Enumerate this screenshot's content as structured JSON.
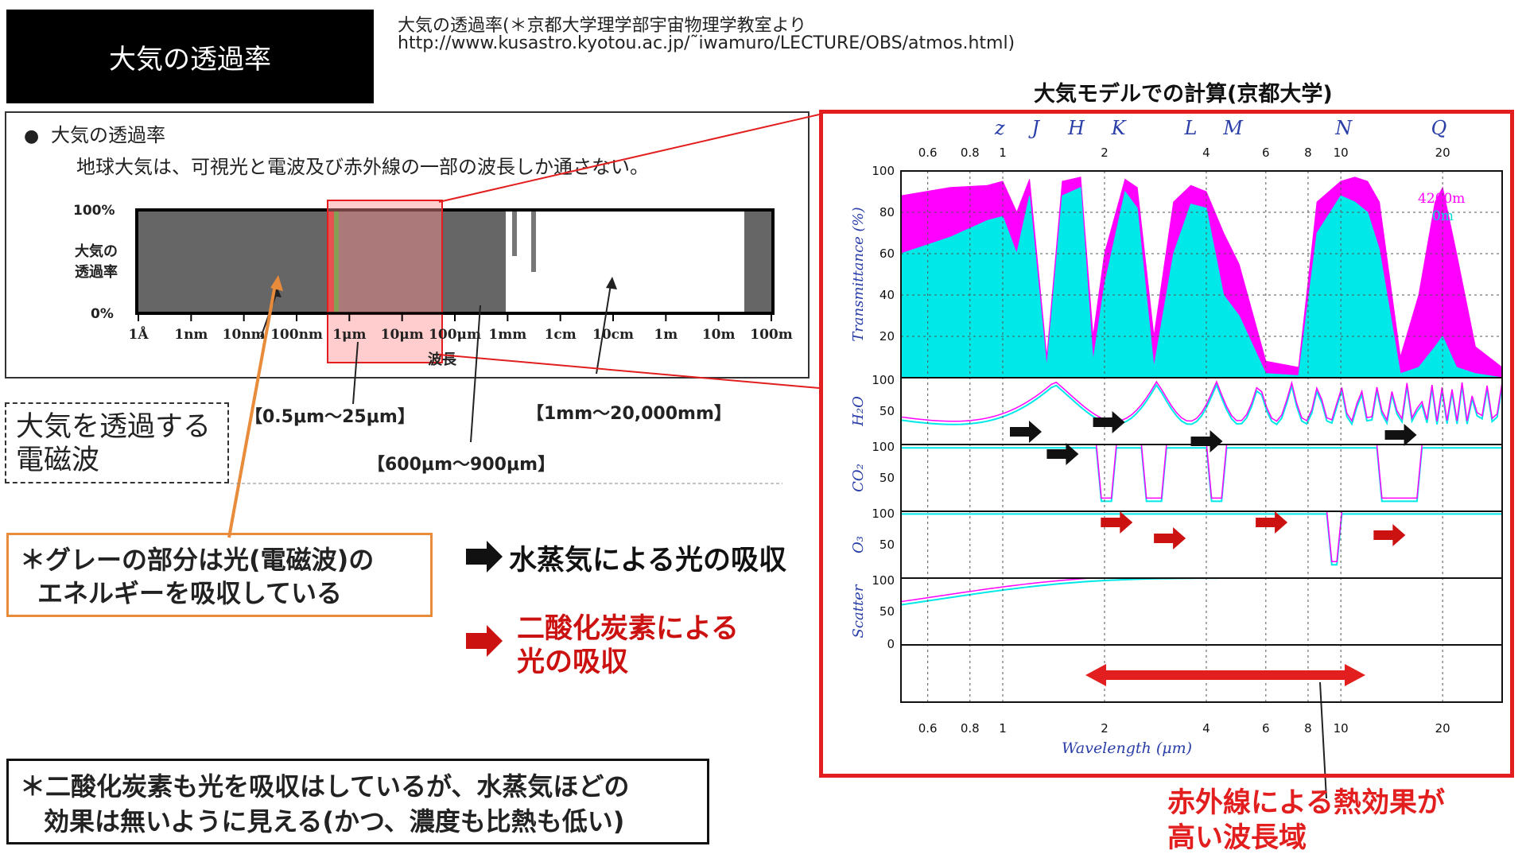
{
  "header": {
    "title": "大気の透過率",
    "source_line1": "大気の透過率(＊京都大学理学部宇宙物理学教室より",
    "source_line2": "http://www.kusastro.kyotou.ac.jp/˜iwamuro/LECTURE/OBS/atmos.html)"
  },
  "model_title": "大気モデルでの計算(京都大学)",
  "left_panel": {
    "bullet": "●",
    "heading": "大気の透過率",
    "description": "地球大気は、可視光と電波及び赤外線の一部の波長しか通さない。",
    "ylabel_line1": "大気の",
    "ylabel_line2": "透過率",
    "xlabel": "波長",
    "ytick_top": "100%",
    "ytick_bottom": "0%",
    "xticks": [
      "1Å",
      "1nm",
      "10nm",
      "100nm",
      "1μm",
      "10μm",
      "100μm",
      "1mm",
      "1cm",
      "10cm",
      "1m",
      "10m",
      "100m"
    ]
  },
  "range_labels": {
    "optical_ir": "【0.5μm～25μm】",
    "submm": "【600μm～900μm】",
    "radio": "【1mm～20,000mm】"
  },
  "em_box": {
    "line1": "大気を透過する",
    "line2": "電磁波"
  },
  "orange_note": {
    "line1": "＊グレーの部分は光(電磁波)の",
    "line2": "エネルギーを吸収している"
  },
  "legend": {
    "black_text": "水蒸気による光の吸収",
    "red_text_line1": "二酸化炭素による",
    "red_text_line2": "光の吸収"
  },
  "bottom_note": {
    "line1": "＊二酸化炭素も光を吸収はしているが、水蒸気ほどの",
    "line2": "効果は無いように見える(かつ、濃度も比熱も低い)"
  },
  "red_note": {
    "line1": "赤外線による熱効果が",
    "line2": "高い波長域"
  },
  "chart": {
    "bands": [
      "z",
      "J",
      "H",
      "K",
      "L",
      "M",
      "N",
      "Q"
    ],
    "xticks_top": [
      "0.6",
      "0.8",
      "1",
      "2",
      "4",
      "6",
      "8",
      "10",
      "20"
    ],
    "xticks_bottom": [
      "0.6",
      "0.8",
      "1",
      "2",
      "4",
      "6",
      "8",
      "10",
      "20"
    ],
    "xlabel": "Wavelength (μm)",
    "panel_labels": [
      "Transmittance (%)",
      "H₂O",
      "CO₂",
      "O₃",
      "Scatter"
    ],
    "main_yticks": [
      "100",
      "80",
      "60",
      "40",
      "20"
    ],
    "sub_yticks": [
      "100",
      "50"
    ],
    "bottom_zero": "0",
    "legend_4200": "4200m",
    "legend_0": "0m",
    "colors": {
      "magenta": "#ff00ff",
      "cyan": "#00e8e8",
      "red_arrow": "#cc1111",
      "frame_red": "#e21e1e"
    }
  },
  "chart_data": {
    "type": "area",
    "x_scale": "log",
    "xlabel": "Wavelength (μm)",
    "ylabel": "Transmittance (%)",
    "xlim": [
      0.5,
      30
    ],
    "ylim": [
      0,
      100
    ],
    "series": [
      {
        "name": "4200m",
        "x": [
          0.5,
          0.7,
          0.9,
          1.0,
          1.1,
          1.2,
          1.35,
          1.5,
          1.7,
          1.85,
          2.0,
          2.3,
          2.5,
          2.8,
          3.2,
          3.6,
          4.0,
          4.5,
          5.0,
          6.0,
          7.5,
          8.5,
          10,
          11,
          12,
          13,
          15,
          17,
          19,
          20,
          22,
          25,
          30
        ],
        "y": [
          88,
          92,
          93,
          95,
          80,
          96,
          10,
          95,
          97,
          20,
          60,
          96,
          92,
          20,
          85,
          93,
          90,
          70,
          55,
          8,
          5,
          85,
          95,
          97,
          95,
          85,
          10,
          40,
          85,
          92,
          60,
          15,
          5
        ]
      },
      {
        "name": "0m",
        "x": [
          0.5,
          0.7,
          0.9,
          1.0,
          1.1,
          1.2,
          1.35,
          1.5,
          1.7,
          1.85,
          2.0,
          2.3,
          2.5,
          2.8,
          3.2,
          3.6,
          4.0,
          4.5,
          5.0,
          6.0,
          7.5,
          8.5,
          10,
          11,
          12,
          13,
          15,
          17,
          19,
          20,
          22,
          25,
          30
        ],
        "y": [
          60,
          68,
          76,
          78,
          60,
          88,
          5,
          88,
          92,
          8,
          45,
          90,
          82,
          5,
          60,
          84,
          82,
          40,
          30,
          2,
          1,
          70,
          88,
          85,
          80,
          62,
          2,
          5,
          15,
          20,
          5,
          2,
          0
        ]
      }
    ]
  }
}
